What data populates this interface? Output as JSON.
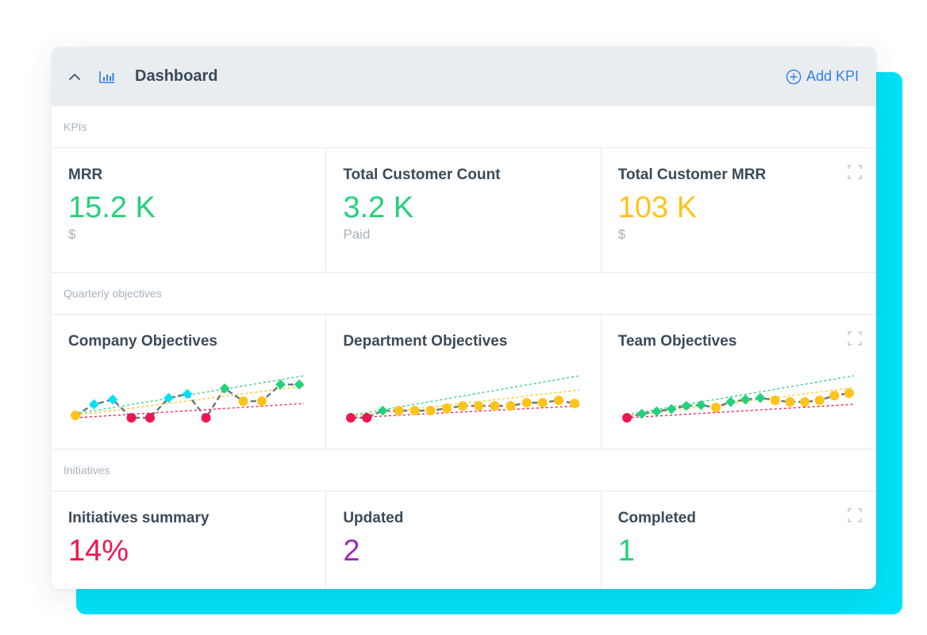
{
  "header": {
    "title": "Dashboard",
    "add_kpi_label": "Add KPI",
    "collapse_icon": "chevron-up-icon",
    "title_icon": "bar-chart-icon",
    "add_icon": "plus-circle-icon"
  },
  "sections": {
    "kpis": {
      "label": "KPIs",
      "tiles": [
        {
          "title": "MRR",
          "value": "15.2 K",
          "unit": "$",
          "color": "#22d27a"
        },
        {
          "title": "Total Customer Count",
          "value": "3.2 K",
          "unit": "Paid",
          "color": "#22d27a"
        },
        {
          "title": "Total Customer MRR",
          "value": "103 K",
          "unit": "$",
          "color": "#ffc31a"
        }
      ]
    },
    "objectives": {
      "label": "Quarterly objectives",
      "tiles": [
        {
          "title": "Company Objectives",
          "points": [
            {
              "shape": "circle",
              "color": "#ffc31a",
              "y": 3
            },
            {
              "shape": "diamond",
              "color": "#00e1f7",
              "y": 17
            },
            {
              "shape": "diamond",
              "color": "#00e1f7",
              "y": 23
            },
            {
              "shape": "circle",
              "color": "#f0154f",
              "y": 0
            },
            {
              "shape": "circle",
              "color": "#f0154f",
              "y": 0
            },
            {
              "shape": "diamond",
              "color": "#00e1f7",
              "y": 25
            },
            {
              "shape": "diamond",
              "color": "#00e1f7",
              "y": 30
            },
            {
              "shape": "circle",
              "color": "#f0154f",
              "y": 0
            },
            {
              "shape": "diamond",
              "color": "#22d27a",
              "y": 37
            },
            {
              "shape": "circle",
              "color": "#ffc31a",
              "y": 21
            },
            {
              "shape": "circle",
              "color": "#ffc31a",
              "y": 21
            },
            {
              "shape": "diamond",
              "color": "#22d27a",
              "y": 42
            },
            {
              "shape": "diamond",
              "color": "#22d27a",
              "y": 42
            }
          ],
          "trends": [
            {
              "color": "#22d27a",
              "from": 5,
              "to": 53
            },
            {
              "color": "#ffc31a",
              "from": 3,
              "to": 40
            },
            {
              "color": "#f0154f",
              "from": 0,
              "to": 18
            }
          ]
        },
        {
          "title": "Department Objectives",
          "points": [
            {
              "shape": "circle",
              "color": "#f0154f",
              "y": 0
            },
            {
              "shape": "circle",
              "color": "#f0154f",
              "y": 0
            },
            {
              "shape": "diamond",
              "color": "#22d27a",
              "y": 9
            },
            {
              "shape": "circle",
              "color": "#ffc31a",
              "y": 9
            },
            {
              "shape": "circle",
              "color": "#ffc31a",
              "y": 9
            },
            {
              "shape": "circle",
              "color": "#ffc31a",
              "y": 9
            },
            {
              "shape": "circle",
              "color": "#ffc31a",
              "y": 12
            },
            {
              "shape": "circle",
              "color": "#ffc31a",
              "y": 15
            },
            {
              "shape": "circle",
              "color": "#ffc31a",
              "y": 15
            },
            {
              "shape": "circle",
              "color": "#ffc31a",
              "y": 15
            },
            {
              "shape": "circle",
              "color": "#ffc31a",
              "y": 15
            },
            {
              "shape": "circle",
              "color": "#ffc31a",
              "y": 19
            },
            {
              "shape": "circle",
              "color": "#ffc31a",
              "y": 19
            },
            {
              "shape": "circle",
              "color": "#ffc31a",
              "y": 22
            },
            {
              "shape": "circle",
              "color": "#ffc31a",
              "y": 18
            }
          ],
          "trends": [
            {
              "color": "#22d27a",
              "from": 3,
              "to": 53
            },
            {
              "color": "#ffc31a",
              "from": 2,
              "to": 35
            },
            {
              "color": "#f0154f",
              "from": 0,
              "to": 15
            }
          ]
        },
        {
          "title": "Team Objectives",
          "points": [
            {
              "shape": "circle",
              "color": "#f0154f",
              "y": 0
            },
            {
              "shape": "diamond",
              "color": "#22d27a",
              "y": 5
            },
            {
              "shape": "diamond",
              "color": "#22d27a",
              "y": 8
            },
            {
              "shape": "diamond",
              "color": "#22d27a",
              "y": 11
            },
            {
              "shape": "diamond",
              "color": "#22d27a",
              "y": 15
            },
            {
              "shape": "diamond",
              "color": "#22d27a",
              "y": 16
            },
            {
              "shape": "circle",
              "color": "#ffc31a",
              "y": 13
            },
            {
              "shape": "diamond",
              "color": "#22d27a",
              "y": 20
            },
            {
              "shape": "diamond",
              "color": "#22d27a",
              "y": 23
            },
            {
              "shape": "diamond",
              "color": "#22d27a",
              "y": 25
            },
            {
              "shape": "circle",
              "color": "#ffc31a",
              "y": 22
            },
            {
              "shape": "circle",
              "color": "#ffc31a",
              "y": 20
            },
            {
              "shape": "circle",
              "color": "#ffc31a",
              "y": 20
            },
            {
              "shape": "circle",
              "color": "#ffc31a",
              "y": 22
            },
            {
              "shape": "circle",
              "color": "#ffc31a",
              "y": 28
            },
            {
              "shape": "circle",
              "color": "#ffc31a",
              "y": 31
            }
          ],
          "trends": [
            {
              "color": "#22d27a",
              "from": 4,
              "to": 53
            },
            {
              "color": "#ffc31a",
              "from": 2,
              "to": 38
            },
            {
              "color": "#f0154f",
              "from": 0,
              "to": 17
            }
          ]
        }
      ]
    },
    "initiatives": {
      "label": "Initiatives",
      "tiles": [
        {
          "title": "Initiatives summary",
          "value": "14%",
          "color": "#f0154f"
        },
        {
          "title": "Updated",
          "value": "2",
          "color": "#9b2cb4"
        },
        {
          "title": "Completed",
          "value": "1",
          "color": "#22d27a"
        }
      ]
    }
  },
  "colors": {
    "accent": "#00e1f7",
    "link": "#2f80ed",
    "header_bg": "#eaedf0"
  },
  "icons": {
    "expand": "expand-icon"
  }
}
